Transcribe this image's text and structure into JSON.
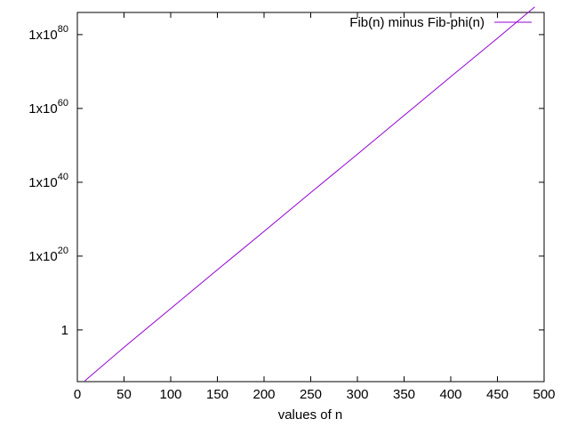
{
  "chart_data": {
    "type": "line",
    "title": "",
    "xlabel": "values of n",
    "ylabel": "",
    "y_scale": "log10",
    "xlim": [
      0,
      500
    ],
    "ylim_log10": [
      -14,
      86
    ],
    "x_ticks": [
      0,
      50,
      100,
      150,
      200,
      250,
      300,
      350,
      400,
      450,
      500
    ],
    "x_tick_labels": [
      "0",
      "50",
      "100",
      "150",
      "200",
      "250",
      "300",
      "350",
      "400",
      "450",
      "500"
    ],
    "y_ticks_log10": [
      0,
      20,
      40,
      60,
      80
    ],
    "y_tick_labels": [
      {
        "base": "1",
        "exp": ""
      },
      {
        "base": "1x10",
        "exp": "20"
      },
      {
        "base": "1x10",
        "exp": "40"
      },
      {
        "base": "1x10",
        "exp": "60"
      },
      {
        "base": "1x10",
        "exp": "80"
      }
    ],
    "grid": false,
    "legend_position": "top-right",
    "series": [
      {
        "name": "Fib(n) minus Fib-phi(n)",
        "color": "#9400d3",
        "x": [
          8,
          50,
          100,
          150,
          200,
          250,
          300,
          350,
          400,
          450,
          490
        ],
        "y_log10": [
          -13.8,
          -4.7,
          5.8,
          16.3,
          26.7,
          37.2,
          47.6,
          58.1,
          68.6,
          79.0,
          87.5
        ]
      }
    ]
  }
}
